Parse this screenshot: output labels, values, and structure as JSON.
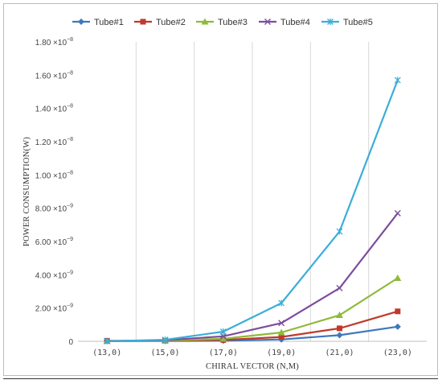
{
  "chart_data": {
    "type": "line",
    "title": "",
    "xlabel": "CHIRAL VECTOR (N,M)",
    "ylabel": "POWER CONSUMPTION(W)",
    "categories": [
      "(13,0)",
      "(15,0)",
      "(17,0)",
      "(19,0)",
      "(21,0)",
      "(23,0)"
    ],
    "ylim": [
      0,
      1.8e-08
    ],
    "yticks": [
      {
        "value": 0,
        "mantissa": "0",
        "exp": ""
      },
      {
        "value": 2e-09,
        "mantissa": "2.00",
        "exp": "−9"
      },
      {
        "value": 4e-09,
        "mantissa": "4.00",
        "exp": "−9"
      },
      {
        "value": 6e-09,
        "mantissa": "6.00",
        "exp": "−9"
      },
      {
        "value": 8e-09,
        "mantissa": "8.00",
        "exp": "−9"
      },
      {
        "value": 1e-08,
        "mantissa": "1.00",
        "exp": "−8"
      },
      {
        "value": 1.2e-08,
        "mantissa": "1.20",
        "exp": "−8"
      },
      {
        "value": 1.4e-08,
        "mantissa": "1.40",
        "exp": "−8"
      },
      {
        "value": 1.6e-08,
        "mantissa": "1.60",
        "exp": "−8"
      },
      {
        "value": 1.8e-08,
        "mantissa": "1.80",
        "exp": "−8"
      }
    ],
    "grid": "vertical",
    "legend_position": "top",
    "series": [
      {
        "name": "Tube#1",
        "color": "#3f78bd",
        "marker": "diamond",
        "values": [
          1e-11,
          2e-11,
          3.5e-11,
          1.1e-10,
          3.7e-10,
          8.8e-10
        ]
      },
      {
        "name": "Tube#2",
        "color": "#c0392b",
        "marker": "square",
        "values": [
          3e-11,
          3.5e-11,
          8e-11,
          2.6e-10,
          7.8e-10,
          1.8e-09
        ]
      },
      {
        "name": "Tube#3",
        "color": "#8fba3a",
        "marker": "triangle",
        "values": [
          1e-11,
          4e-11,
          1.5e-10,
          5.3e-10,
          1.57e-09,
          3.8e-09
        ]
      },
      {
        "name": "Tube#4",
        "color": "#7d4d9e",
        "marker": "x",
        "values": [
          1e-11,
          7e-11,
          3e-10,
          1.1e-09,
          3.2e-09,
          7.7e-09
        ]
      },
      {
        "name": "Tube#5",
        "color": "#3aaed8",
        "marker": "star",
        "values": [
          1e-11,
          9e-11,
          5.8e-10,
          2.3e-09,
          6.6e-09,
          1.57e-08
        ]
      }
    ]
  }
}
